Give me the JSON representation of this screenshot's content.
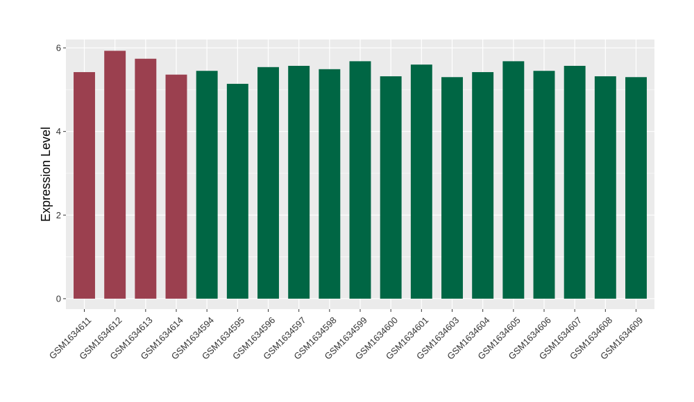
{
  "chart_data": {
    "type": "bar",
    "title": "",
    "xlabel": "",
    "ylabel": "Expression Level",
    "ylim": [
      -0.25,
      6.2
    ],
    "yticks": [
      0,
      2,
      4,
      6
    ],
    "grid": true,
    "categories": [
      "GSM1634611",
      "GSM1634612",
      "GSM1634613",
      "GSM1634614",
      "GSM1634594",
      "GSM1634595",
      "GSM1634596",
      "GSM1634597",
      "GSM1634598",
      "GSM1634599",
      "GSM1634600",
      "GSM1634601",
      "GSM1634603",
      "GSM1634604",
      "GSM1634605",
      "GSM1634606",
      "GSM1634607",
      "GSM1634608",
      "GSM1634609"
    ],
    "values": [
      5.42,
      5.93,
      5.74,
      5.36,
      5.45,
      5.14,
      5.54,
      5.57,
      5.49,
      5.68,
      5.32,
      5.6,
      5.3,
      5.42,
      5.68,
      5.45,
      5.57,
      5.32,
      5.3
    ],
    "groups": [
      "a",
      "a",
      "a",
      "a",
      "b",
      "b",
      "b",
      "b",
      "b",
      "b",
      "b",
      "b",
      "b",
      "b",
      "b",
      "b",
      "b",
      "b",
      "b"
    ],
    "group_colors": {
      "a": "#9b404f",
      "b": "#006644"
    },
    "panel_color": "#ebebeb",
    "grid_color": "#ffffff"
  }
}
